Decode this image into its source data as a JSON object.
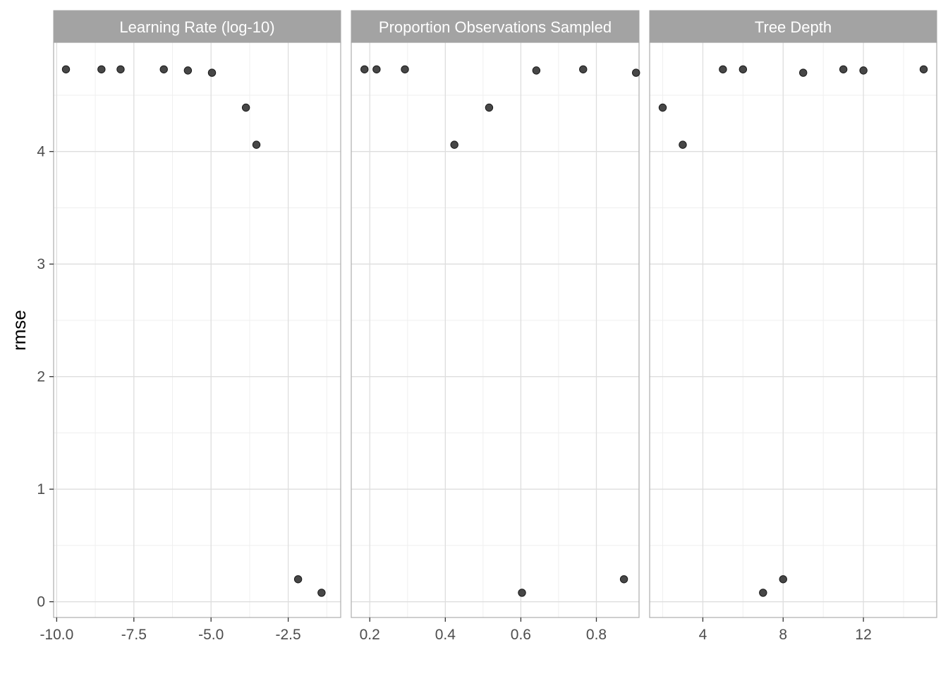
{
  "chart_data": [
    {
      "type": "scatter",
      "title": "Learning Rate (log-10)",
      "xlabel": "",
      "ylabel": "rmse",
      "xlim": [
        -10.1,
        -0.8
      ],
      "ylim": [
        -0.14,
        4.97
      ],
      "xticks": [
        -10.0,
        -7.5,
        -5.0,
        -2.5
      ],
      "xtick_labels": [
        "-10.0",
        "-7.5",
        "-5.0",
        "-2.5"
      ],
      "xminor": [
        -8.75,
        -6.25,
        -3.75,
        -1.25
      ],
      "yticks": [
        0,
        1,
        2,
        3,
        4
      ],
      "ytick_labels": [
        "0",
        "1",
        "2",
        "3",
        "4"
      ],
      "yminor": [
        0.5,
        1.5,
        2.5,
        3.5,
        4.5
      ],
      "grid": true,
      "points": [
        {
          "x": -9.7,
          "y": 4.73
        },
        {
          "x": -8.55,
          "y": 4.73
        },
        {
          "x": -7.93,
          "y": 4.73
        },
        {
          "x": -6.53,
          "y": 4.73
        },
        {
          "x": -5.75,
          "y": 4.72
        },
        {
          "x": -4.97,
          "y": 4.7
        },
        {
          "x": -3.87,
          "y": 4.39
        },
        {
          "x": -3.53,
          "y": 4.06
        },
        {
          "x": -2.18,
          "y": 0.2
        },
        {
          "x": -1.42,
          "y": 0.08
        }
      ]
    },
    {
      "type": "scatter",
      "title": "Proportion Observations Sampled",
      "xlabel": "",
      "ylabel": "rmse",
      "xlim": [
        0.151,
        0.913
      ],
      "ylim": [
        -0.14,
        4.97
      ],
      "xticks": [
        0.2,
        0.4,
        0.6,
        0.8
      ],
      "xtick_labels": [
        "0.2",
        "0.4",
        "0.6",
        "0.8"
      ],
      "xminor": [
        0.3,
        0.5,
        0.7
      ],
      "yticks": [
        0,
        1,
        2,
        3,
        4
      ],
      "ytick_labels": [
        "0",
        "1",
        "2",
        "3",
        "4"
      ],
      "yminor": [
        0.5,
        1.5,
        2.5,
        3.5,
        4.5
      ],
      "grid": true,
      "points": [
        {
          "x": 0.186,
          "y": 4.73
        },
        {
          "x": 0.218,
          "y": 4.73
        },
        {
          "x": 0.293,
          "y": 4.73
        },
        {
          "x": 0.424,
          "y": 4.06
        },
        {
          "x": 0.516,
          "y": 4.39
        },
        {
          "x": 0.603,
          "y": 0.08
        },
        {
          "x": 0.641,
          "y": 4.72
        },
        {
          "x": 0.765,
          "y": 4.73
        },
        {
          "x": 0.873,
          "y": 0.2
        },
        {
          "x": 0.905,
          "y": 4.7
        }
      ]
    },
    {
      "type": "scatter",
      "title": "Tree Depth",
      "xlabel": "",
      "ylabel": "rmse",
      "xlim": [
        1.35,
        15.65
      ],
      "ylim": [
        -0.14,
        4.97
      ],
      "xticks": [
        4,
        8,
        12
      ],
      "xtick_labels": [
        "4",
        "8",
        "12"
      ],
      "xminor": [
        2,
        6,
        10,
        14
      ],
      "yticks": [
        0,
        1,
        2,
        3,
        4
      ],
      "ytick_labels": [
        "0",
        "1",
        "2",
        "3",
        "4"
      ],
      "yminor": [
        0.5,
        1.5,
        2.5,
        3.5,
        4.5
      ],
      "grid": true,
      "points": [
        {
          "x": 2,
          "y": 4.39
        },
        {
          "x": 3,
          "y": 4.06
        },
        {
          "x": 5,
          "y": 4.73
        },
        {
          "x": 6,
          "y": 4.73
        },
        {
          "x": 7,
          "y": 0.08
        },
        {
          "x": 8,
          "y": 0.2
        },
        {
          "x": 9,
          "y": 4.7
        },
        {
          "x": 11,
          "y": 4.73
        },
        {
          "x": 12,
          "y": 4.72
        },
        {
          "x": 15,
          "y": 4.73
        }
      ]
    }
  ],
  "colors": {
    "point": "#333333",
    "strip_fill": "#a3a3a3",
    "panel_border": "#b3b3b3",
    "grid_major": "#dedede",
    "grid_minor": "#efefef"
  }
}
